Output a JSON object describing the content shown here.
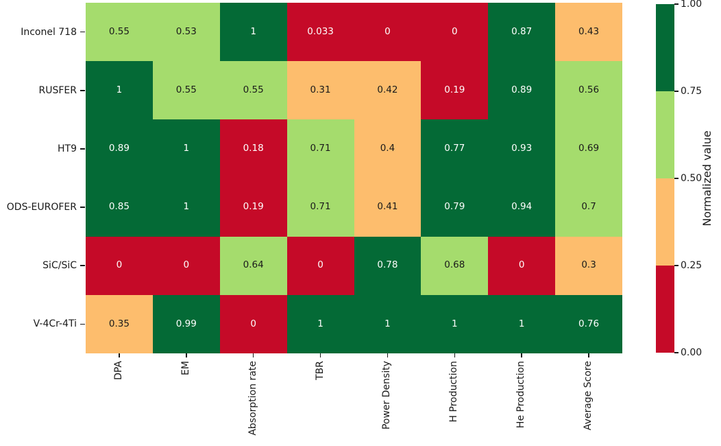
{
  "figure": {
    "background": "#ffffff"
  },
  "chart_data": {
    "type": "heatmap",
    "title": "",
    "rows": [
      "Inconel 718",
      "RUSFER",
      "HT9",
      "ODS-EUROFER",
      "SiC/SiC",
      "V-4Cr-4Ti"
    ],
    "columns": [
      "DPA",
      "EM",
      "Absorption rate",
      "TBR",
      "Power Density",
      "H Production",
      "He Production",
      "Average Score"
    ],
    "values": [
      [
        0.55,
        0.53,
        1,
        0.033,
        0,
        0,
        0.87,
        0.43
      ],
      [
        1,
        0.55,
        0.55,
        0.31,
        0.42,
        0.19,
        0.89,
        0.56
      ],
      [
        0.89,
        1,
        0.18,
        0.71,
        0.4,
        0.77,
        0.93,
        0.69
      ],
      [
        0.85,
        1,
        0.19,
        0.71,
        0.41,
        0.79,
        0.94,
        0.7
      ],
      [
        0,
        0,
        0.64,
        0,
        0.78,
        0.68,
        0,
        0.3
      ],
      [
        0.35,
        0.99,
        0,
        1,
        1,
        1,
        1,
        0.76
      ]
    ],
    "value_range": [
      0,
      1
    ],
    "grid": false,
    "legend_position": "right",
    "palette": {
      "bin_bounds": [
        0,
        0.25,
        0.5,
        0.75,
        1
      ],
      "bin_colors": [
        "#c50a28",
        "#fdbd6d",
        "#a5dc6d",
        "#046a36"
      ],
      "text_on_dark": "#ffffff",
      "text_on_light": "#1a1a1a"
    },
    "colorbar": {
      "label": "Normalized value",
      "ticks": [
        "1.00",
        "0.75",
        "0.50",
        "0.25",
        "0.00"
      ],
      "segment_colors_top_to_bottom": [
        "#046a36",
        "#a5dc6d",
        "#fdbd6d",
        "#c50a28"
      ]
    }
  }
}
